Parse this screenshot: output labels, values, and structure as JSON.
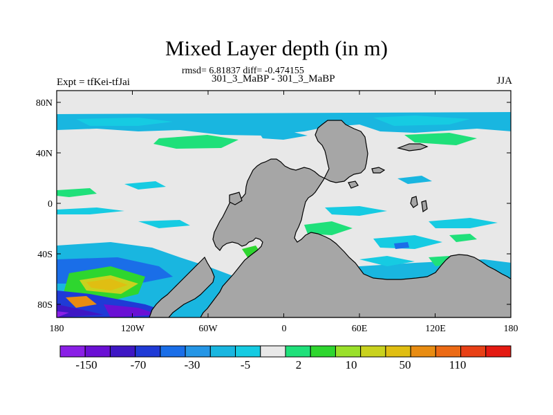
{
  "title": "Mixed Layer depth (in m)",
  "stats_line": "rmsd= 6.81837 diff= -0.474155",
  "experiment_names": "301_3_MaBP - 301_3_MaBP",
  "experiment_label": "Expt = tfKei-tfJai",
  "season": "JJA",
  "lat_ticks": [
    "80N",
    "40N",
    "0",
    "40S",
    "80S"
  ],
  "lon_ticks": [
    "180",
    "120W",
    "60W",
    "0",
    "60E",
    "120E",
    "180"
  ],
  "colorbar": {
    "colors": [
      "#8a1fe6",
      "#6a10d4",
      "#3e17c4",
      "#1f3ad6",
      "#1a6ee8",
      "#2596e6",
      "#19b6e0",
      "#16cbe2",
      "#e8e8e8",
      "#1fe07a",
      "#2ed62f",
      "#9ae02a",
      "#c9d21e",
      "#e0be12",
      "#e88c12",
      "#ec6a14",
      "#e84016",
      "#e41a12"
    ],
    "labels": [
      "-150",
      "-70",
      "-30",
      "-5",
      "2",
      "10",
      "50",
      "110"
    ]
  },
  "map": {
    "background": "#e8e8e8",
    "land_color": "#a6a6a6"
  }
}
